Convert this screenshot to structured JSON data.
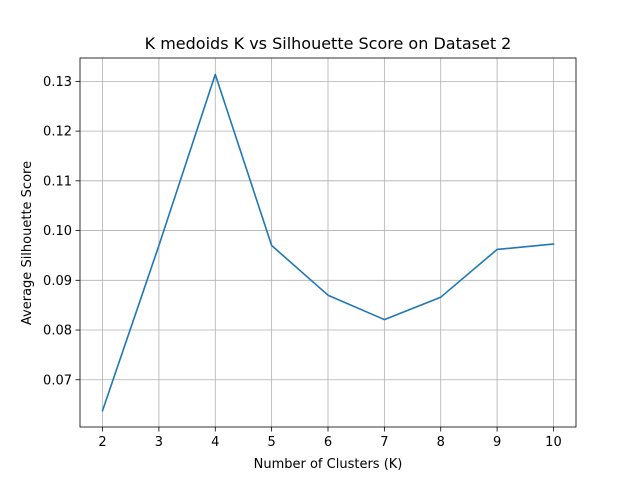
{
  "chart_data": {
    "type": "line",
    "title": "K medoids K vs Silhouette Score on Dataset 2",
    "xlabel": "Number of Clusters (K)",
    "ylabel": "Average Silhouette Score",
    "x": [
      2,
      3,
      4,
      5,
      6,
      7,
      8,
      9,
      10
    ],
    "series": [
      {
        "values": [
          0.0638,
          0.097,
          0.1314,
          0.097,
          0.087,
          0.0821,
          0.0866,
          0.0962,
          0.0973
        ],
        "color": "#1f77b4"
      }
    ],
    "xlim": [
      1.6,
      10.4
    ],
    "ylim": [
      0.0605,
      0.1347
    ],
    "xticks": [
      2,
      3,
      4,
      5,
      6,
      7,
      8,
      9,
      10
    ],
    "xtick_labels": [
      "2",
      "3",
      "4",
      "5",
      "6",
      "7",
      "8",
      "9",
      "10"
    ],
    "yticks": [
      0.07,
      0.08,
      0.09,
      0.1,
      0.11,
      0.12,
      0.13
    ],
    "ytick_labels": [
      "0.07",
      "0.08",
      "0.09",
      "0.10",
      "0.11",
      "0.12",
      "0.13"
    ],
    "grid": true,
    "grid_color": "#b0b0b0",
    "axis_color": "#000000"
  }
}
